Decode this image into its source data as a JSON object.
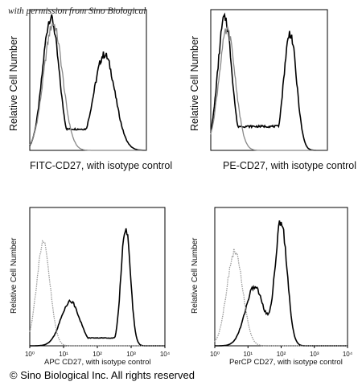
{
  "watermark": "with permission from Sino Biological",
  "copyright": "© Sino Biological Inc. All rights reserved",
  "chart_data": [
    {
      "type": "line",
      "ylabel": "Relative Cell Number",
      "xlabel": "FITC-CD27, with isotype control",
      "series": [
        {
          "color": "#000000",
          "peaks": [
            {
              "center": 0.18,
              "height": 1.0,
              "width": 0.07
            },
            {
              "center": 0.64,
              "height": 0.72,
              "width": 0.09
            }
          ],
          "baseline": 0.16
        },
        {
          "color": "#888888",
          "peaks": [
            {
              "center": 0.2,
              "height": 0.95,
              "width": 0.08
            }
          ],
          "baseline": 0.0
        }
      ]
    },
    {
      "type": "line",
      "ylabel": "Relative Cell Number",
      "xlabel": "PE-CD27, with isotype control",
      "series": [
        {
          "color": "#000000",
          "peaks": [
            {
              "center": 0.12,
              "height": 1.0,
              "width": 0.06
            },
            {
              "center": 0.68,
              "height": 0.88,
              "width": 0.055
            }
          ],
          "baseline": 0.18
        },
        {
          "color": "#888888",
          "peaks": [
            {
              "center": 0.14,
              "height": 0.9,
              "width": 0.07
            }
          ],
          "baseline": 0.0
        }
      ]
    },
    {
      "type": "line",
      "ylabel": "Relative Cell Number",
      "xlabel": "APC CD27, with isotype control",
      "x_tick_labels": [
        "10⁰",
        "10¹",
        "10²",
        "10³",
        "10⁴"
      ],
      "series": [
        {
          "color": "#000000",
          "peaks": [
            {
              "center": 0.3,
              "height": 0.34,
              "width": 0.07
            },
            {
              "center": 0.71,
              "height": 0.9,
              "width": 0.035
            }
          ],
          "baseline": 0.06
        },
        {
          "color": "#9a9a9a",
          "peaks": [
            {
              "center": 0.1,
              "height": 0.78,
              "width": 0.05
            }
          ],
          "baseline": 0.0
        }
      ]
    },
    {
      "type": "line",
      "ylabel": "Relative Cell Number",
      "xlabel": "PerCP CD27, with isotype control",
      "x_tick_labels": [
        "10⁰",
        "10¹",
        "10²",
        "10³",
        "10⁴"
      ],
      "series": [
        {
          "color": "#000000",
          "peaks": [
            {
              "center": 0.3,
              "height": 0.45,
              "width": 0.07
            },
            {
              "center": 0.5,
              "height": 0.95,
              "width": 0.045
            }
          ],
          "baseline": 0.05
        },
        {
          "color": "#9a9a9a",
          "peaks": [
            {
              "center": 0.15,
              "height": 0.72,
              "width": 0.06
            }
          ],
          "baseline": 0.0
        }
      ]
    }
  ]
}
